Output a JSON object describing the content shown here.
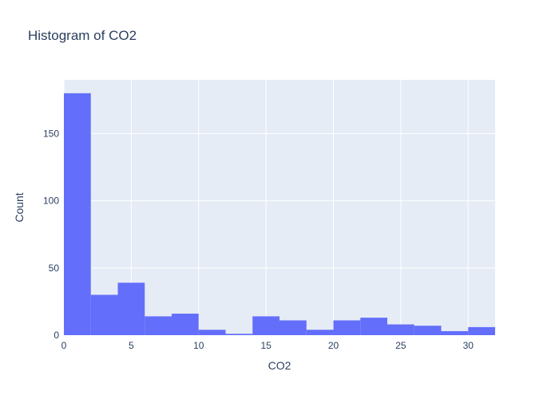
{
  "chart_data": {
    "type": "bar",
    "title": "Histogram of CO2",
    "xlabel": "CO2",
    "ylabel": "Count",
    "bin_width": 2,
    "bins": [
      {
        "start": 0,
        "end": 2,
        "count": 180
      },
      {
        "start": 2,
        "end": 4,
        "count": 30
      },
      {
        "start": 4,
        "end": 6,
        "count": 39
      },
      {
        "start": 6,
        "end": 8,
        "count": 14
      },
      {
        "start": 8,
        "end": 10,
        "count": 16
      },
      {
        "start": 10,
        "end": 12,
        "count": 4
      },
      {
        "start": 12,
        "end": 14,
        "count": 1
      },
      {
        "start": 14,
        "end": 16,
        "count": 14
      },
      {
        "start": 16,
        "end": 18,
        "count": 11
      },
      {
        "start": 18,
        "end": 20,
        "count": 4
      },
      {
        "start": 20,
        "end": 22,
        "count": 11
      },
      {
        "start": 22,
        "end": 24,
        "count": 13
      },
      {
        "start": 24,
        "end": 26,
        "count": 8
      },
      {
        "start": 26,
        "end": 28,
        "count": 7
      },
      {
        "start": 28,
        "end": 30,
        "count": 3
      },
      {
        "start": 30,
        "end": 32,
        "count": 6
      }
    ],
    "xlim": [
      0,
      32
    ],
    "ylim": [
      0,
      190
    ],
    "xticks": [
      0,
      5,
      10,
      15,
      20,
      25,
      30
    ],
    "xtick_labels": [
      "0",
      "5",
      "10",
      "15",
      "20",
      "25",
      "30"
    ],
    "yticks": [
      0,
      50,
      100,
      150
    ],
    "ytick_labels": [
      "0",
      "50",
      "100",
      "150"
    ],
    "grid": true,
    "colors": {
      "bar": "#636efa",
      "plot_bg": "#e5ecf6",
      "grid": "#ffffff",
      "text": "#2a3f5f"
    }
  }
}
